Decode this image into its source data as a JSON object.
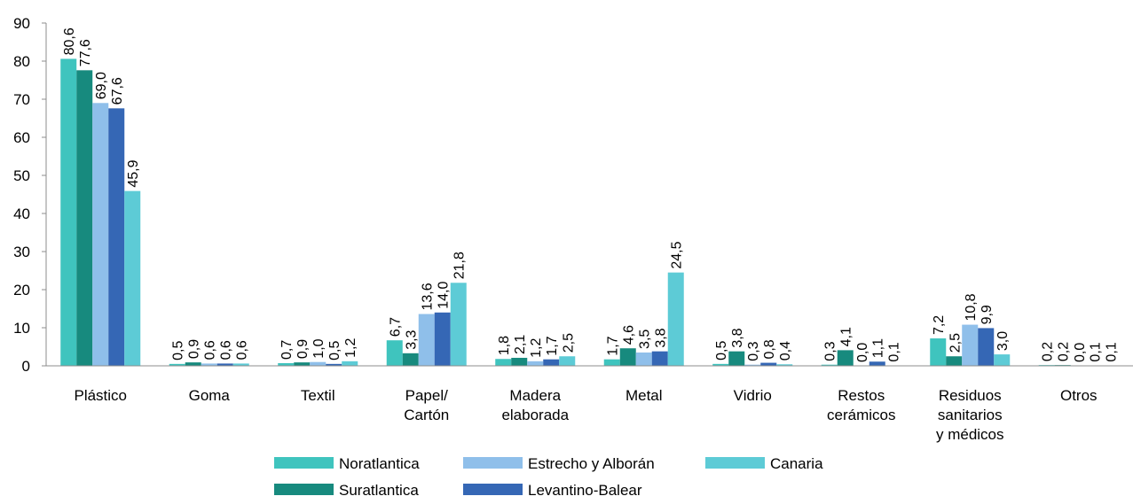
{
  "chart_data": {
    "type": "bar",
    "categories": [
      [
        "Plástico"
      ],
      [
        "Goma"
      ],
      [
        "Textil"
      ],
      [
        "Papel/",
        "Cartón"
      ],
      [
        "Madera",
        "elaborada"
      ],
      [
        "Metal"
      ],
      [
        "Vidrio"
      ],
      [
        "Restos",
        "cerámicos"
      ],
      [
        "Residuos",
        "sanitarios",
        "y médicos"
      ],
      [
        "Otros"
      ]
    ],
    "series": [
      {
        "name": "Noratlantica",
        "color": "#3fc4be",
        "values": [
          80.6,
          0.5,
          0.7,
          6.7,
          1.8,
          1.7,
          0.5,
          0.3,
          7.2,
          0.2
        ],
        "labels": [
          "80,6",
          "0,5",
          "0,7",
          "6,7",
          "1,8",
          "1,7",
          "0,5",
          "0,3",
          "7,2",
          "0,2"
        ]
      },
      {
        "name": "Suratlantica",
        "color": "#178a7e",
        "values": [
          77.6,
          0.9,
          0.9,
          3.3,
          2.1,
          4.6,
          3.8,
          4.1,
          2.5,
          0.2
        ],
        "labels": [
          "77,6",
          "0,9",
          "0,9",
          "3,3",
          "2,1",
          "4,6",
          "3,8",
          "4,1",
          "2,5",
          "0,2"
        ]
      },
      {
        "name": "Estrecho y Alborán",
        "color": "#8fbfea",
        "values": [
          69.0,
          0.6,
          1.0,
          13.6,
          1.2,
          3.5,
          0.3,
          0.0,
          10.8,
          0.0
        ],
        "labels": [
          "69,0",
          "0,6",
          "1,0",
          "13,6",
          "1,2",
          "3,5",
          "0,3",
          "0,0",
          "10,8",
          "0,0"
        ]
      },
      {
        "name": "Levantino-Balear",
        "color": "#3567b5",
        "values": [
          67.6,
          0.6,
          0.5,
          14.0,
          1.7,
          3.8,
          0.8,
          1.1,
          9.9,
          0.1
        ],
        "labels": [
          "67,6",
          "0,6",
          "0,5",
          "14,0",
          "1,7",
          "3,8",
          "0,8",
          "1,1",
          "9,9",
          "0,1"
        ]
      },
      {
        "name": "Canaria",
        "color": "#5dcbd6",
        "values": [
          45.9,
          0.6,
          1.2,
          21.8,
          2.5,
          24.5,
          0.4,
          0.1,
          3.0,
          0.1
        ],
        "labels": [
          "45,9",
          "0,6",
          "1,2",
          "21,8",
          "2,5",
          "24,5",
          "0,4",
          "0,1",
          "3,0",
          "0,1"
        ]
      }
    ],
    "ylim": [
      0,
      90
    ],
    "yticks": [
      "0",
      "10",
      "20",
      "30",
      "40",
      "50",
      "60",
      "70",
      "80",
      "90"
    ],
    "legend_placement": "bottom",
    "grid": false
  }
}
